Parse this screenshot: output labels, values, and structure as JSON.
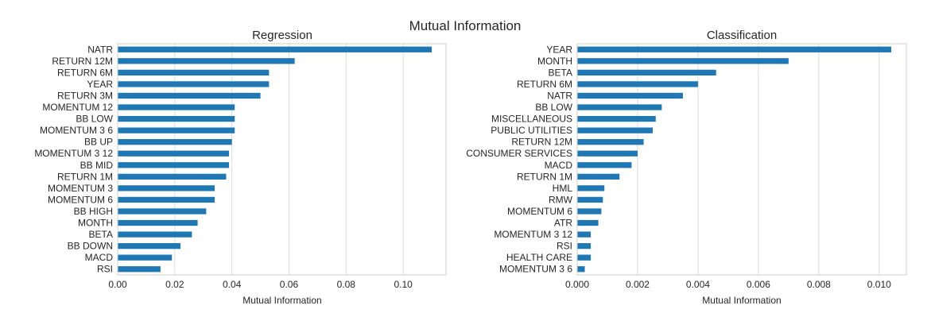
{
  "figure": {
    "suptitle": "Mutual Information"
  },
  "chart_data": [
    {
      "type": "bar",
      "orientation": "horizontal",
      "title": "Regression",
      "xlabel": "Mutual Information",
      "ylabel": "",
      "xlim": [
        0,
        0.115
      ],
      "xticks": [
        0.0,
        0.02,
        0.04,
        0.06,
        0.08,
        0.1
      ],
      "xtick_labels": [
        "0.00",
        "0.02",
        "0.04",
        "0.06",
        "0.08",
        "0.10"
      ],
      "grid": true,
      "color": "#1f77b4",
      "categories": [
        "NATR",
        "RETURN 12M",
        "RETURN 6M",
        "YEAR",
        "RETURN 3M",
        "MOMENTUM 12",
        "BB LOW",
        "MOMENTUM 3 6",
        "BB UP",
        "MOMENTUM 3 12",
        "BB MID",
        "RETURN 1M",
        "MOMENTUM 3",
        "MOMENTUM 6",
        "BB HIGH",
        "MONTH",
        "BETA",
        "BB DOWN",
        "MACD",
        "RSI"
      ],
      "values": [
        0.11,
        0.062,
        0.053,
        0.053,
        0.05,
        0.041,
        0.041,
        0.041,
        0.04,
        0.039,
        0.039,
        0.038,
        0.034,
        0.034,
        0.031,
        0.028,
        0.026,
        0.022,
        0.019,
        0.015
      ]
    },
    {
      "type": "bar",
      "orientation": "horizontal",
      "title": "Classification",
      "xlabel": "Mutual Information",
      "ylabel": "",
      "xlim": [
        0,
        0.0109
      ],
      "xticks": [
        0.0,
        0.002,
        0.004,
        0.006,
        0.008,
        0.01
      ],
      "xtick_labels": [
        "0.000",
        "0.002",
        "0.004",
        "0.006",
        "0.008",
        "0.010"
      ],
      "grid": true,
      "color": "#1f77b4",
      "categories": [
        "YEAR",
        "MONTH",
        "BETA",
        "RETURN 6M",
        "NATR",
        "BB LOW",
        "MISCELLANEOUS",
        "PUBLIC UTILITIES",
        "RETURN 12M",
        "CONSUMER SERVICES",
        "MACD",
        "RETURN 1M",
        "HML",
        "RMW",
        "MOMENTUM 6",
        "ATR",
        "MOMENTUM 3 12",
        "RSI",
        "HEALTH CARE",
        "MOMENTUM 3 6"
      ],
      "values": [
        0.0104,
        0.007,
        0.0046,
        0.004,
        0.0035,
        0.0028,
        0.0026,
        0.0025,
        0.0022,
        0.002,
        0.0018,
        0.0014,
        0.0009,
        0.00085,
        0.0008,
        0.0007,
        0.00045,
        0.00045,
        0.00045,
        0.00025
      ]
    }
  ]
}
